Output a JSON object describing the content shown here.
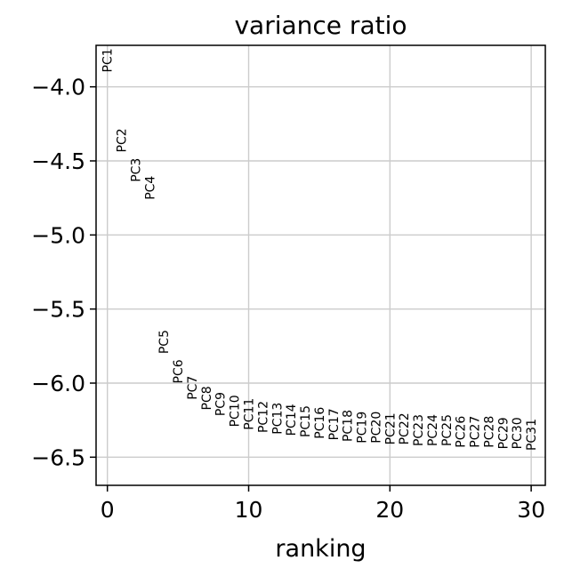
{
  "chart_data": {
    "type": "scatter",
    "title": "variance ratio",
    "xlabel": "ranking",
    "ylabel": "",
    "xlim": [
      -0.8,
      31
    ],
    "ylim": [
      -6.69,
      -3.72
    ],
    "xticks": [
      0,
      10,
      20,
      30
    ],
    "xtick_labels": [
      "0",
      "10",
      "20",
      "30"
    ],
    "yticks": [
      -4.0,
      -4.5,
      -5.0,
      -5.5,
      -6.0,
      -6.5
    ],
    "ytick_labels": [
      "−4.0",
      "−4.5",
      "−5.0",
      "−5.5",
      "−6.0",
      "−6.5"
    ],
    "grid": true,
    "points": [
      {
        "label": "PC1",
        "x": 0,
        "y": -3.74
      },
      {
        "label": "PC2",
        "x": 1,
        "y": -4.28
      },
      {
        "label": "PC3",
        "x": 2,
        "y": -4.48
      },
      {
        "label": "PC4",
        "x": 3,
        "y": -4.6
      },
      {
        "label": "PC5",
        "x": 4,
        "y": -5.64
      },
      {
        "label": "PC6",
        "x": 5,
        "y": -5.84
      },
      {
        "label": "PC7",
        "x": 6,
        "y": -5.95
      },
      {
        "label": "PC8",
        "x": 7,
        "y": -6.02
      },
      {
        "label": "PC9",
        "x": 8,
        "y": -6.06
      },
      {
        "label": "PC10",
        "x": 9,
        "y": -6.08
      },
      {
        "label": "PC11",
        "x": 10,
        "y": -6.1
      },
      {
        "label": "PC12",
        "x": 11,
        "y": -6.12
      },
      {
        "label": "PC13",
        "x": 12,
        "y": -6.13
      },
      {
        "label": "PC14",
        "x": 13,
        "y": -6.14
      },
      {
        "label": "PC15",
        "x": 14,
        "y": -6.15
      },
      {
        "label": "PC16",
        "x": 15,
        "y": -6.16
      },
      {
        "label": "PC17",
        "x": 16,
        "y": -6.17
      },
      {
        "label": "PC18",
        "x": 17,
        "y": -6.18
      },
      {
        "label": "PC19",
        "x": 18,
        "y": -6.19
      },
      {
        "label": "PC20",
        "x": 19,
        "y": -6.19
      },
      {
        "label": "PC21",
        "x": 20,
        "y": -6.2
      },
      {
        "label": "PC22",
        "x": 21,
        "y": -6.2
      },
      {
        "label": "PC23",
        "x": 22,
        "y": -6.21
      },
      {
        "label": "PC24",
        "x": 23,
        "y": -6.21
      },
      {
        "label": "PC25",
        "x": 24,
        "y": -6.21
      },
      {
        "label": "PC26",
        "x": 25,
        "y": -6.22
      },
      {
        "label": "PC27",
        "x": 26,
        "y": -6.22
      },
      {
        "label": "PC28",
        "x": 27,
        "y": -6.22
      },
      {
        "label": "PC29",
        "x": 28,
        "y": -6.23
      },
      {
        "label": "PC30",
        "x": 29,
        "y": -6.23
      },
      {
        "label": "PC31",
        "x": 30,
        "y": -6.24
      }
    ]
  },
  "colors": {
    "grid": "#cccccc",
    "axis": "#000000",
    "text": "#000000",
    "background": "#ffffff"
  }
}
